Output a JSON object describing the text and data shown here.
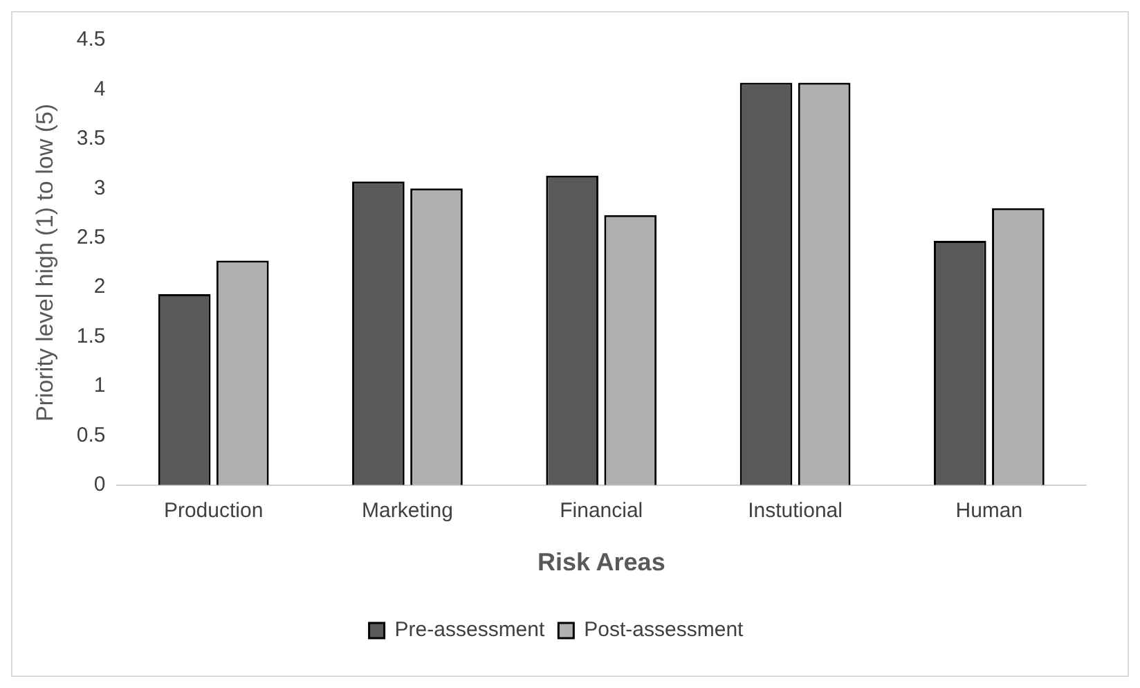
{
  "chart_data": {
    "type": "bar",
    "xlabel": "Risk Areas",
    "ylabel": "Priority level high (1) to low (5)",
    "categories": [
      "Production",
      "Marketing",
      "Financial",
      "Instutional",
      "Human"
    ],
    "series": [
      {
        "name": "Pre-assessment",
        "color": "#595959",
        "values": [
          1.93,
          3.07,
          3.13,
          4.07,
          2.47
        ]
      },
      {
        "name": "Post-assessment",
        "color": "#b0b0b0",
        "values": [
          2.27,
          3.0,
          2.73,
          4.07,
          2.8
        ]
      }
    ],
    "ylim": [
      0,
      4.5
    ],
    "yticks": [
      0,
      0.5,
      1,
      1.5,
      2,
      2.5,
      3,
      3.5,
      4,
      4.5
    ],
    "grid": false,
    "legend": "bottom"
  }
}
